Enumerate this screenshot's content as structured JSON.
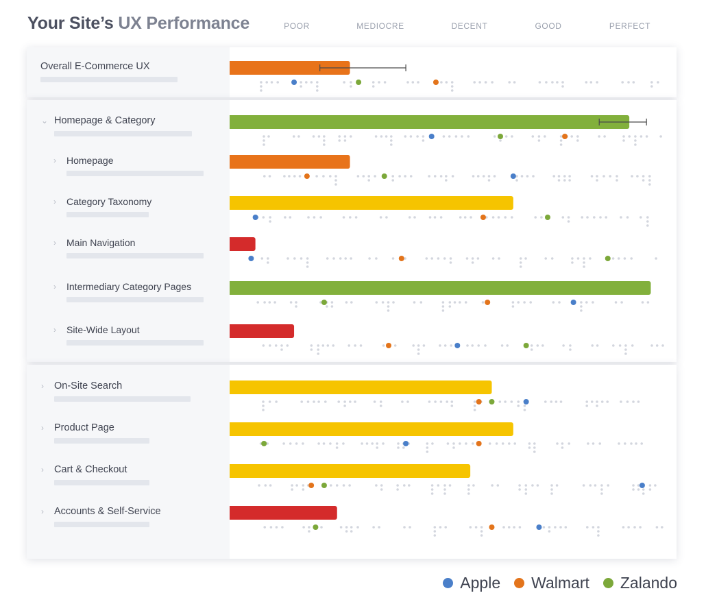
{
  "header": {
    "title_prefix": "Your Site’s ",
    "title_accent": "UX Performance"
  },
  "legend": [
    {
      "name": "Apple",
      "color": "#4a7fc9"
    },
    {
      "name": "Walmart",
      "color": "#e3741b"
    },
    {
      "name": "Zalando",
      "color": "#7ca83a"
    }
  ],
  "chart_data": {
    "type": "bar",
    "scale_labels": [
      "POOR",
      "MEDIOCRE",
      "DECENT",
      "GOOD",
      "PERFECT"
    ],
    "rating_colors": {
      "poor": "#d42b2b",
      "mediocre": "#e8731a",
      "decent": "#f6c400",
      "good": "#82b03c"
    },
    "categories": [
      "Overall E-Commerce UX",
      "Homepage & Category",
      "Homepage",
      "Category Taxonomy",
      "Main Navigation",
      "Intermediary Category Pages",
      "Site-Wide Layout",
      "On-Site Search",
      "Product Page",
      "Cart & Checkout",
      "Accounts & Self-Service"
    ],
    "rows": [
      {
        "label": "Overall E-Commerce UX",
        "level": 0,
        "group": "overall",
        "chevron": false,
        "value": 0.28,
        "rating": "mediocre",
        "error": [
          0.21,
          0.41
        ],
        "apple": 0.15,
        "walmart": 0.48,
        "zalando": 0.3
      },
      {
        "label": "Homepage & Category",
        "level": 0,
        "group": "homepage",
        "chevron": true,
        "value": 0.93,
        "rating": "good",
        "error": [
          0.86,
          0.97
        ],
        "apple": 0.47,
        "walmart": 0.78,
        "zalando": 0.63
      },
      {
        "label": "Homepage",
        "level": 1,
        "group": "homepage",
        "chevron": true,
        "value": 0.28,
        "rating": "mediocre",
        "apple": 0.66,
        "walmart": 0.18,
        "zalando": 0.36
      },
      {
        "label": "Category Taxonomy",
        "level": 1,
        "group": "homepage",
        "chevron": true,
        "value": 0.66,
        "rating": "decent",
        "apple": 0.06,
        "walmart": 0.59,
        "zalando": 0.74
      },
      {
        "label": "Main Navigation",
        "level": 1,
        "group": "homepage",
        "chevron": true,
        "value": 0.06,
        "rating": "poor",
        "apple": 0.05,
        "walmart": 0.4,
        "zalando": 0.88
      },
      {
        "label": "Intermediary Category Pages",
        "level": 1,
        "group": "homepage",
        "chevron": true,
        "value": 0.98,
        "rating": "good",
        "apple": 0.8,
        "walmart": 0.6,
        "zalando": 0.22
      },
      {
        "label": "Site-Wide Layout",
        "level": 1,
        "group": "homepage",
        "chevron": true,
        "value": 0.15,
        "rating": "poor",
        "apple": 0.53,
        "walmart": 0.37,
        "zalando": 0.69
      },
      {
        "label": "On-Site Search",
        "level": 0,
        "group": "other",
        "chevron": true,
        "value": 0.61,
        "rating": "decent",
        "apple": 0.69,
        "walmart": 0.58,
        "zalando": 0.61
      },
      {
        "label": "Product Page",
        "level": 0,
        "group": "other",
        "chevron": true,
        "value": 0.66,
        "rating": "decent",
        "apple": 0.41,
        "walmart": 0.58,
        "zalando": 0.08
      },
      {
        "label": "Cart & Checkout",
        "level": 0,
        "group": "other",
        "chevron": true,
        "value": 0.56,
        "rating": "decent",
        "apple": 0.96,
        "walmart": 0.19,
        "zalando": 0.22
      },
      {
        "label": "Accounts & Self-Service",
        "level": 0,
        "group": "other",
        "chevron": true,
        "value": 0.25,
        "rating": "poor",
        "apple": 0.72,
        "walmart": 0.61,
        "zalando": 0.2
      }
    ]
  }
}
